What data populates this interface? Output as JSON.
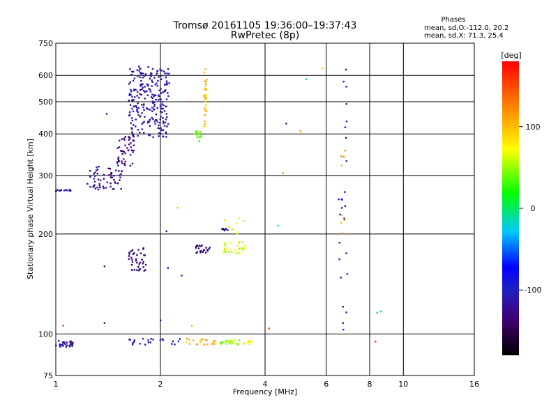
{
  "chart_data": {
    "type": "scatter",
    "title": "Tromsø 20161105 19:36:00–19:37:43",
    "subtitle": "RwPretec (8p)",
    "xlabel": "Frequency [MHz]",
    "ylabel": "Stationary phase Virtual Height [km]",
    "x_scale": "log",
    "y_scale": "log",
    "xlim": [
      1,
      16
    ],
    "ylim": [
      75,
      750
    ],
    "x_ticks": [
      1,
      2,
      4,
      6,
      8,
      10,
      16
    ],
    "x_tick_labels": [
      "1",
      "2",
      "4",
      "6",
      "8",
      "10",
      "16"
    ],
    "y_ticks": [
      75,
      100,
      200,
      300,
      400,
      500,
      600,
      750
    ],
    "y_tick_labels": [
      "75",
      "100",
      "200",
      "300",
      "400",
      "500",
      "600",
      "750"
    ],
    "grid": true,
    "phase_stats": {
      "title": "Phases",
      "line1": "mean, sd,O:-112.0, 20.2",
      "line2": "mean, sd,X:  71.3, 25.4"
    },
    "colorbar": {
      "label": "[deg]",
      "range": [
        -180,
        180
      ],
      "ticks": [
        100,
        0,
        -100
      ],
      "tick_labels": [
        "100",
        "0",
        "-100"
      ]
    },
    "clusters": [
      {
        "x": [
          1.0,
          1.12
        ],
        "y": [
          91,
          96
        ],
        "phase": -115,
        "n": 30
      },
      {
        "x": [
          1.0,
          1.12
        ],
        "y": [
          268,
          272
        ],
        "phase": -112,
        "n": 14
      },
      {
        "x": [
          1.22,
          1.55
        ],
        "y": [
          272,
          320
        ],
        "phase": -130,
        "n": 60
      },
      {
        "x": [
          1.5,
          1.68
        ],
        "y": [
          320,
          400
        ],
        "phase": -128,
        "n": 45
      },
      {
        "x": [
          1.62,
          2.12
        ],
        "y": [
          390,
          640
        ],
        "phase": -112,
        "n": 240
      },
      {
        "x": [
          1.62,
          1.82
        ],
        "y": [
          155,
          182
        ],
        "phase": -130,
        "n": 40
      },
      {
        "x": [
          2.5,
          2.78
        ],
        "y": [
          175,
          185
        ],
        "phase": -135,
        "n": 22
      },
      {
        "x": [
          3.0,
          3.12
        ],
        "y": [
          205,
          208
        ],
        "phase": -130,
        "n": 8
      },
      {
        "x": [
          2.5,
          2.62
        ],
        "y": [
          380,
          410
        ],
        "phase": 35,
        "n": 15
      },
      {
        "x": [
          2.66,
          2.72
        ],
        "y": [
          420,
          560
        ],
        "phase": 100,
        "n": 24
      },
      {
        "x": [
          2.66,
          2.72
        ],
        "y": [
          560,
          630
        ],
        "phase": 110,
        "n": 6
      },
      {
        "x": [
          3.0,
          3.5
        ],
        "y": [
          175,
          190
        ],
        "phase": 65,
        "n": 30
      },
      {
        "x": [
          3.0,
          3.5
        ],
        "y": [
          198,
          225
        ],
        "phase": 70,
        "n": 8
      },
      {
        "x": [
          1.6,
          2.3
        ],
        "y": [
          93,
          97
        ],
        "phase": -112,
        "n": 22
      },
      {
        "x": [
          2.36,
          2.88
        ],
        "y": [
          93,
          97
        ],
        "phase": 110,
        "n": 20
      },
      {
        "x": [
          2.96,
          3.4
        ],
        "y": [
          93,
          96
        ],
        "phase": 50,
        "n": 22
      },
      {
        "x": [
          3.45,
          3.7
        ],
        "y": [
          93,
          96
        ],
        "phase": 70,
        "n": 10
      },
      {
        "x": [
          6.5,
          6.9
        ],
        "y": [
          100,
          640
        ],
        "phase": -105,
        "n": 25
      },
      {
        "x": [
          6.6,
          6.9
        ],
        "y": [
          190,
          380
        ],
        "phase": 115,
        "n": 8
      }
    ],
    "points": [
      {
        "x": 1.05,
        "y": 106,
        "phase": 150
      },
      {
        "x": 1.38,
        "y": 108,
        "phase": -120
      },
      {
        "x": 1.38,
        "y": 160,
        "phase": -130
      },
      {
        "x": 1.4,
        "y": 460,
        "phase": -115
      },
      {
        "x": 2.08,
        "y": 204,
        "phase": -120
      },
      {
        "x": 2.24,
        "y": 240,
        "phase": 100
      },
      {
        "x": 2.46,
        "y": 106,
        "phase": 105
      },
      {
        "x": 2.43,
        "y": 500,
        "phase": 140
      },
      {
        "x": 4.1,
        "y": 104,
        "phase": 150
      },
      {
        "x": 4.35,
        "y": 212,
        "phase": -30
      },
      {
        "x": 4.5,
        "y": 305,
        "phase": 120
      },
      {
        "x": 4.6,
        "y": 430,
        "phase": -130
      },
      {
        "x": 5.05,
        "y": 408,
        "phase": 115
      },
      {
        "x": 5.25,
        "y": 585,
        "phase": -10
      },
      {
        "x": 5.85,
        "y": 630,
        "phase": 100
      },
      {
        "x": 8.3,
        "y": 95,
        "phase": 160
      },
      {
        "x": 8.4,
        "y": 116,
        "phase": -20
      },
      {
        "x": 8.6,
        "y": 117,
        "phase": 5
      },
      {
        "x": 2.0,
        "y": 110,
        "phase": -110
      },
      {
        "x": 2.1,
        "y": 158,
        "phase": -105
      },
      {
        "x": 2.3,
        "y": 150,
        "phase": -100
      }
    ]
  }
}
